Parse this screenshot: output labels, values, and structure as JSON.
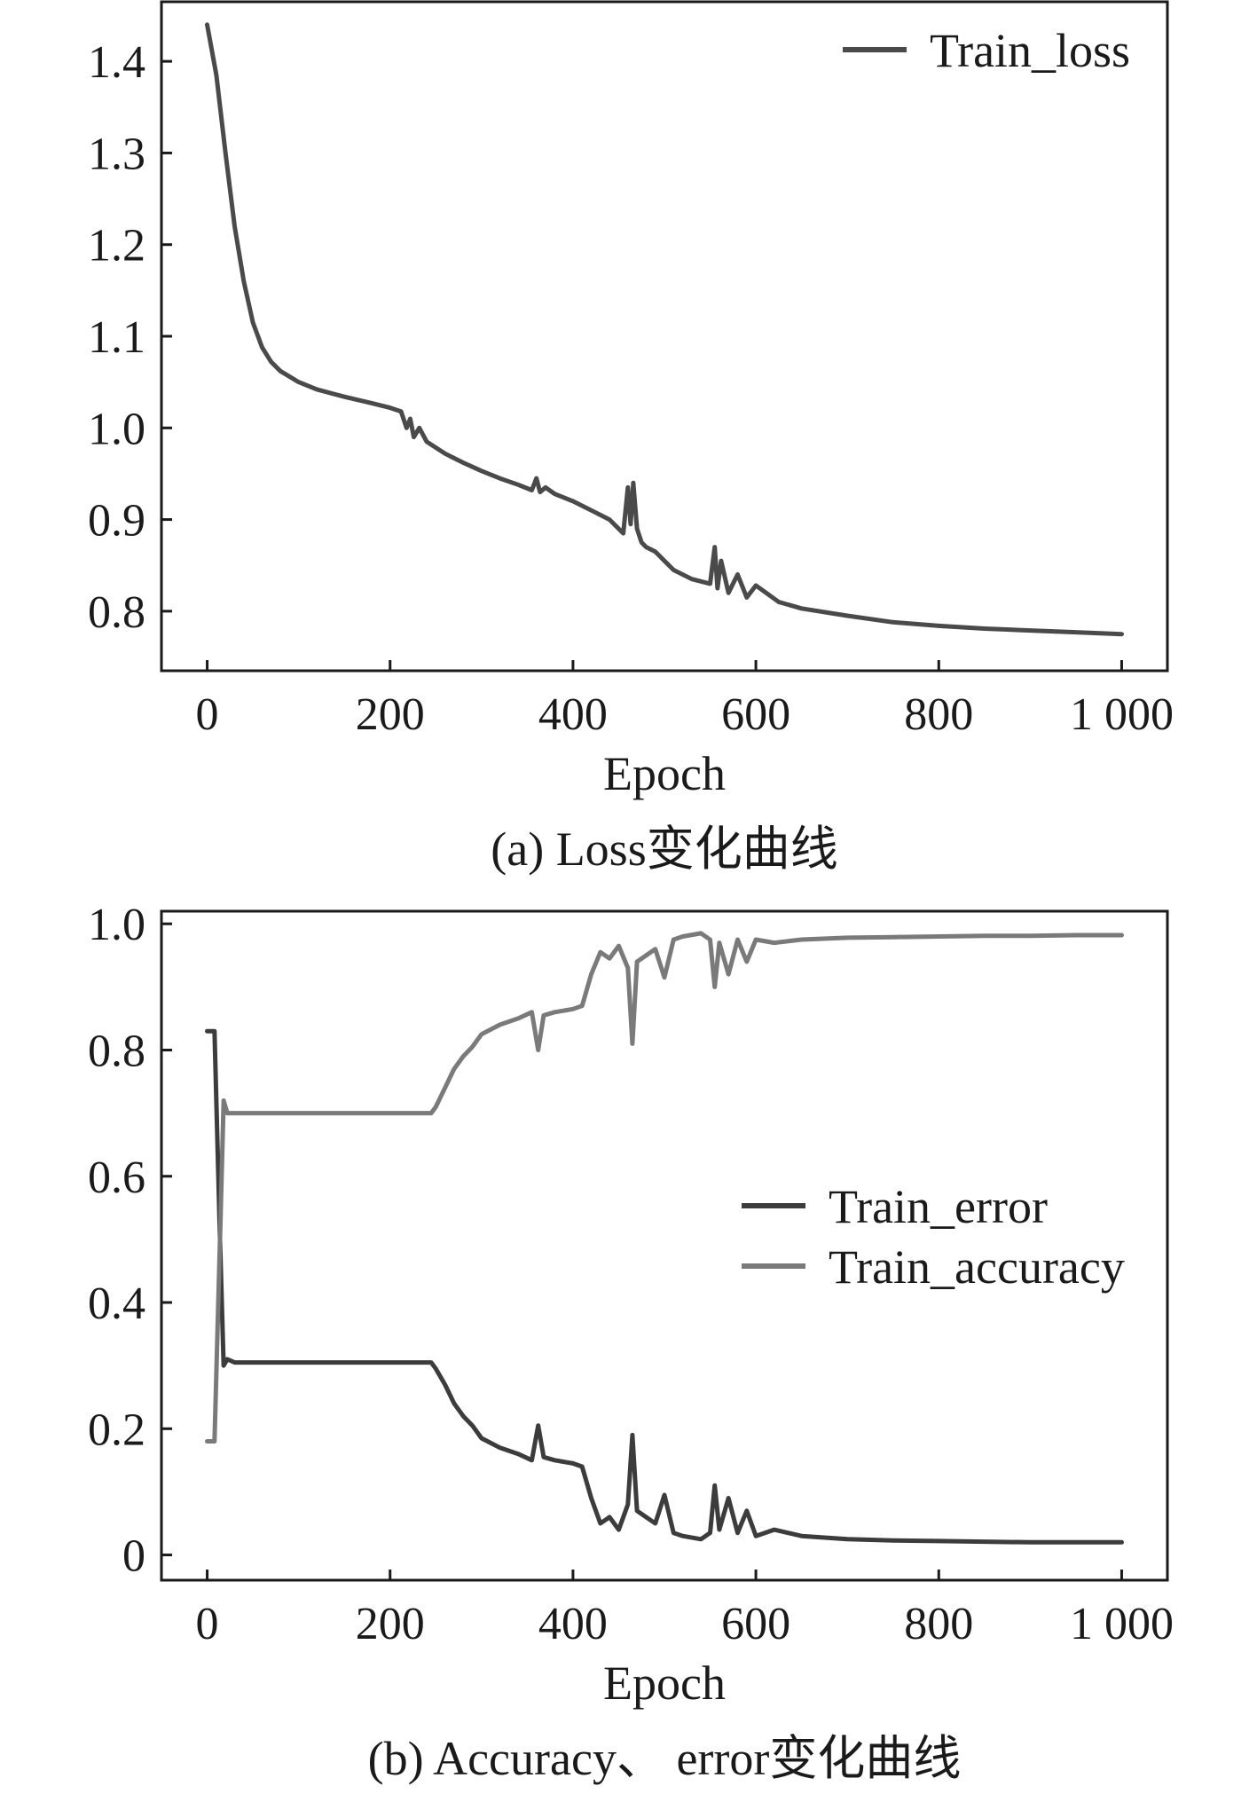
{
  "chart_data": [
    {
      "type": "line",
      "panel": "a",
      "caption": "(a) Loss变化曲线",
      "title": "",
      "xlabel": "Epoch",
      "ylabel": "",
      "xlim": [
        -50,
        1050
      ],
      "ylim": [
        0.735,
        1.465
      ],
      "x_ticks": [
        0,
        200,
        400,
        600,
        800,
        1000
      ],
      "x_tick_labels": [
        "0",
        "200",
        "400",
        "600",
        "800",
        "1 000"
      ],
      "y_ticks": [
        0.8,
        0.9,
        1.0,
        1.1,
        1.2,
        1.3,
        1.4
      ],
      "y_tick_labels": [
        "0.8",
        "0.9",
        "1.0",
        "1.1",
        "1.2",
        "1.3",
        "1.4"
      ],
      "grid": false,
      "legend": {
        "position": "top-right",
        "entries": [
          "Train_loss"
        ]
      },
      "series": [
        {
          "name": "Train_loss",
          "color": "#4a4a4a",
          "x": [
            0,
            10,
            20,
            30,
            40,
            50,
            60,
            70,
            80,
            100,
            120,
            150,
            180,
            200,
            212,
            218,
            222,
            226,
            232,
            240,
            260,
            280,
            300,
            320,
            340,
            355,
            360,
            364,
            370,
            380,
            400,
            420,
            440,
            455,
            460,
            463,
            466,
            470,
            475,
            480,
            490,
            500,
            510,
            530,
            550,
            555,
            558,
            562,
            570,
            580,
            590,
            600,
            625,
            650,
            700,
            750,
            800,
            850,
            900,
            950,
            1000
          ],
          "values": [
            1.44,
            1.385,
            1.3,
            1.22,
            1.16,
            1.115,
            1.088,
            1.072,
            1.062,
            1.05,
            1.042,
            1.034,
            1.027,
            1.022,
            1.018,
            1.0,
            1.01,
            0.99,
            1.0,
            0.985,
            0.972,
            0.962,
            0.953,
            0.945,
            0.938,
            0.932,
            0.945,
            0.93,
            0.935,
            0.928,
            0.92,
            0.91,
            0.9,
            0.885,
            0.935,
            0.895,
            0.94,
            0.89,
            0.875,
            0.87,
            0.865,
            0.855,
            0.845,
            0.835,
            0.83,
            0.87,
            0.825,
            0.855,
            0.82,
            0.84,
            0.815,
            0.828,
            0.81,
            0.803,
            0.795,
            0.788,
            0.784,
            0.781,
            0.779,
            0.777,
            0.775
          ]
        }
      ]
    },
    {
      "type": "line",
      "panel": "b",
      "caption": "(b) Accuracy、 error变化曲线",
      "title": "",
      "xlabel": "Epoch",
      "ylabel": "",
      "xlim": [
        -50,
        1050
      ],
      "ylim": [
        -0.04,
        1.02
      ],
      "x_ticks": [
        0,
        200,
        400,
        600,
        800,
        1000
      ],
      "x_tick_labels": [
        "0",
        "200",
        "400",
        "600",
        "800",
        "1 000"
      ],
      "y_ticks": [
        0,
        0.2,
        0.4,
        0.6,
        0.8,
        1.0
      ],
      "y_tick_labels": [
        "0",
        "0.2",
        "0.4",
        "0.6",
        "0.8",
        "1.0"
      ],
      "grid": false,
      "legend": {
        "position": "center-right",
        "entries": [
          "Train_error",
          "Train_accuracy"
        ]
      },
      "series": [
        {
          "name": "Train_error",
          "color": "#3c3c3c",
          "x": [
            0,
            8,
            14,
            18,
            22,
            30,
            60,
            100,
            150,
            200,
            245,
            250,
            260,
            270,
            280,
            290,
            300,
            320,
            340,
            355,
            362,
            368,
            380,
            400,
            410,
            420,
            430,
            440,
            450,
            460,
            465,
            470,
            480,
            490,
            500,
            510,
            520,
            540,
            550,
            555,
            560,
            570,
            580,
            590,
            600,
            620,
            650,
            700,
            750,
            800,
            850,
            900,
            950,
            1000
          ],
          "values": [
            0.83,
            0.83,
            0.5,
            0.3,
            0.31,
            0.305,
            0.305,
            0.305,
            0.305,
            0.305,
            0.305,
            0.295,
            0.27,
            0.24,
            0.22,
            0.205,
            0.185,
            0.17,
            0.16,
            0.15,
            0.205,
            0.155,
            0.15,
            0.145,
            0.14,
            0.09,
            0.05,
            0.06,
            0.04,
            0.08,
            0.19,
            0.07,
            0.06,
            0.05,
            0.095,
            0.035,
            0.03,
            0.025,
            0.035,
            0.11,
            0.04,
            0.09,
            0.035,
            0.07,
            0.03,
            0.04,
            0.03,
            0.025,
            0.023,
            0.022,
            0.021,
            0.02,
            0.02,
            0.02
          ]
        },
        {
          "name": "Train_accuracy",
          "color": "#7a7a7a",
          "x": [
            0,
            8,
            14,
            18,
            22,
            30,
            60,
            100,
            150,
            200,
            245,
            250,
            260,
            270,
            280,
            290,
            300,
            320,
            340,
            355,
            362,
            368,
            380,
            400,
            410,
            420,
            430,
            440,
            450,
            460,
            465,
            470,
            480,
            490,
            500,
            510,
            520,
            540,
            550,
            555,
            560,
            570,
            580,
            590,
            600,
            620,
            650,
            700,
            750,
            800,
            850,
            900,
            950,
            1000
          ],
          "values": [
            0.18,
            0.18,
            0.5,
            0.72,
            0.7,
            0.7,
            0.7,
            0.7,
            0.7,
            0.7,
            0.7,
            0.71,
            0.74,
            0.77,
            0.79,
            0.805,
            0.825,
            0.84,
            0.85,
            0.86,
            0.8,
            0.855,
            0.86,
            0.865,
            0.87,
            0.92,
            0.955,
            0.945,
            0.965,
            0.93,
            0.81,
            0.94,
            0.95,
            0.96,
            0.915,
            0.975,
            0.98,
            0.985,
            0.975,
            0.9,
            0.97,
            0.92,
            0.975,
            0.94,
            0.975,
            0.97,
            0.975,
            0.978,
            0.979,
            0.98,
            0.981,
            0.981,
            0.982,
            0.982
          ]
        }
      ]
    }
  ]
}
